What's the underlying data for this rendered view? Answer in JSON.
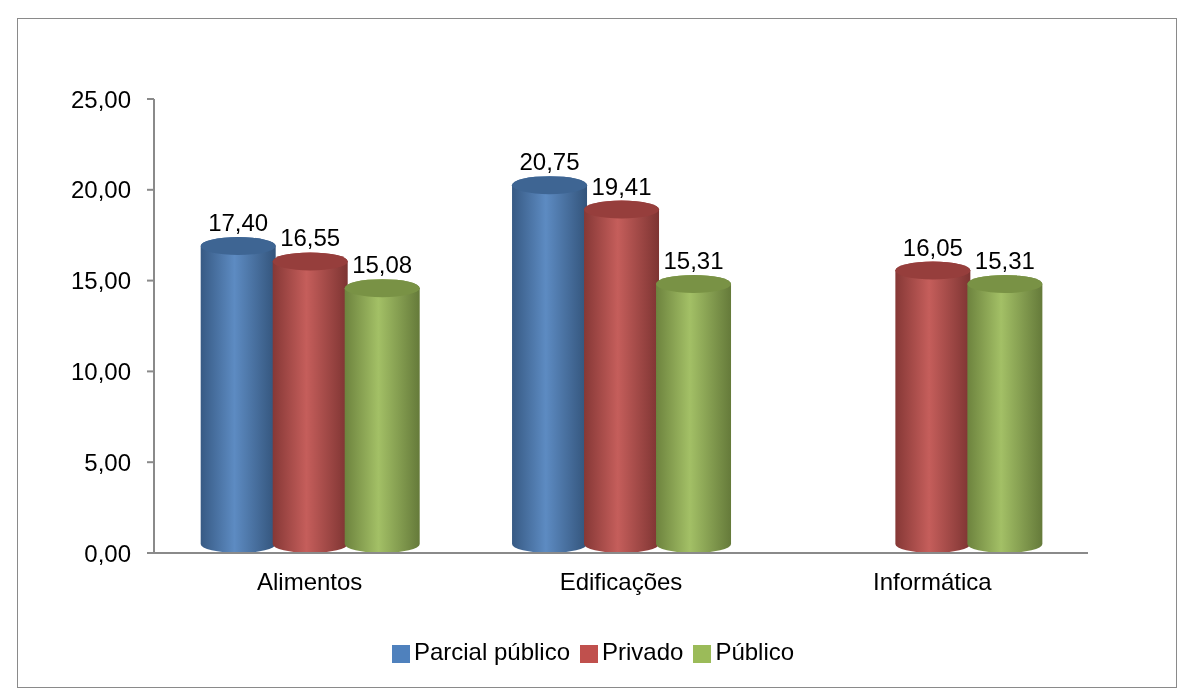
{
  "chart_data": {
    "type": "bar",
    "categories": [
      "Alimentos",
      "Edificações",
      "Informática"
    ],
    "series": [
      {
        "name": "Parcial público",
        "color": "#4f81bd",
        "values": [
          17.4,
          20.75,
          null
        ],
        "value_labels": [
          "17,40",
          "20,75",
          null
        ]
      },
      {
        "name": "Privado",
        "color": "#c0504d",
        "values": [
          16.55,
          19.41,
          16.05
        ],
        "value_labels": [
          "16,55",
          "19,41",
          "16,05"
        ]
      },
      {
        "name": "Público",
        "color": "#9bbb59",
        "values": [
          15.08,
          15.31,
          15.31
        ],
        "value_labels": [
          "15,08",
          "15,31",
          "15,31"
        ]
      }
    ],
    "ylim": [
      0,
      25
    ],
    "yticks": [
      {
        "value": 0,
        "label": "0,00"
      },
      {
        "value": 5,
        "label": "5,00"
      },
      {
        "value": 10,
        "label": "10,00"
      },
      {
        "value": 15,
        "label": "15,00"
      },
      {
        "value": 20,
        "label": "20,00"
      },
      {
        "value": 25,
        "label": "25,00"
      }
    ],
    "legend": "bottom"
  }
}
